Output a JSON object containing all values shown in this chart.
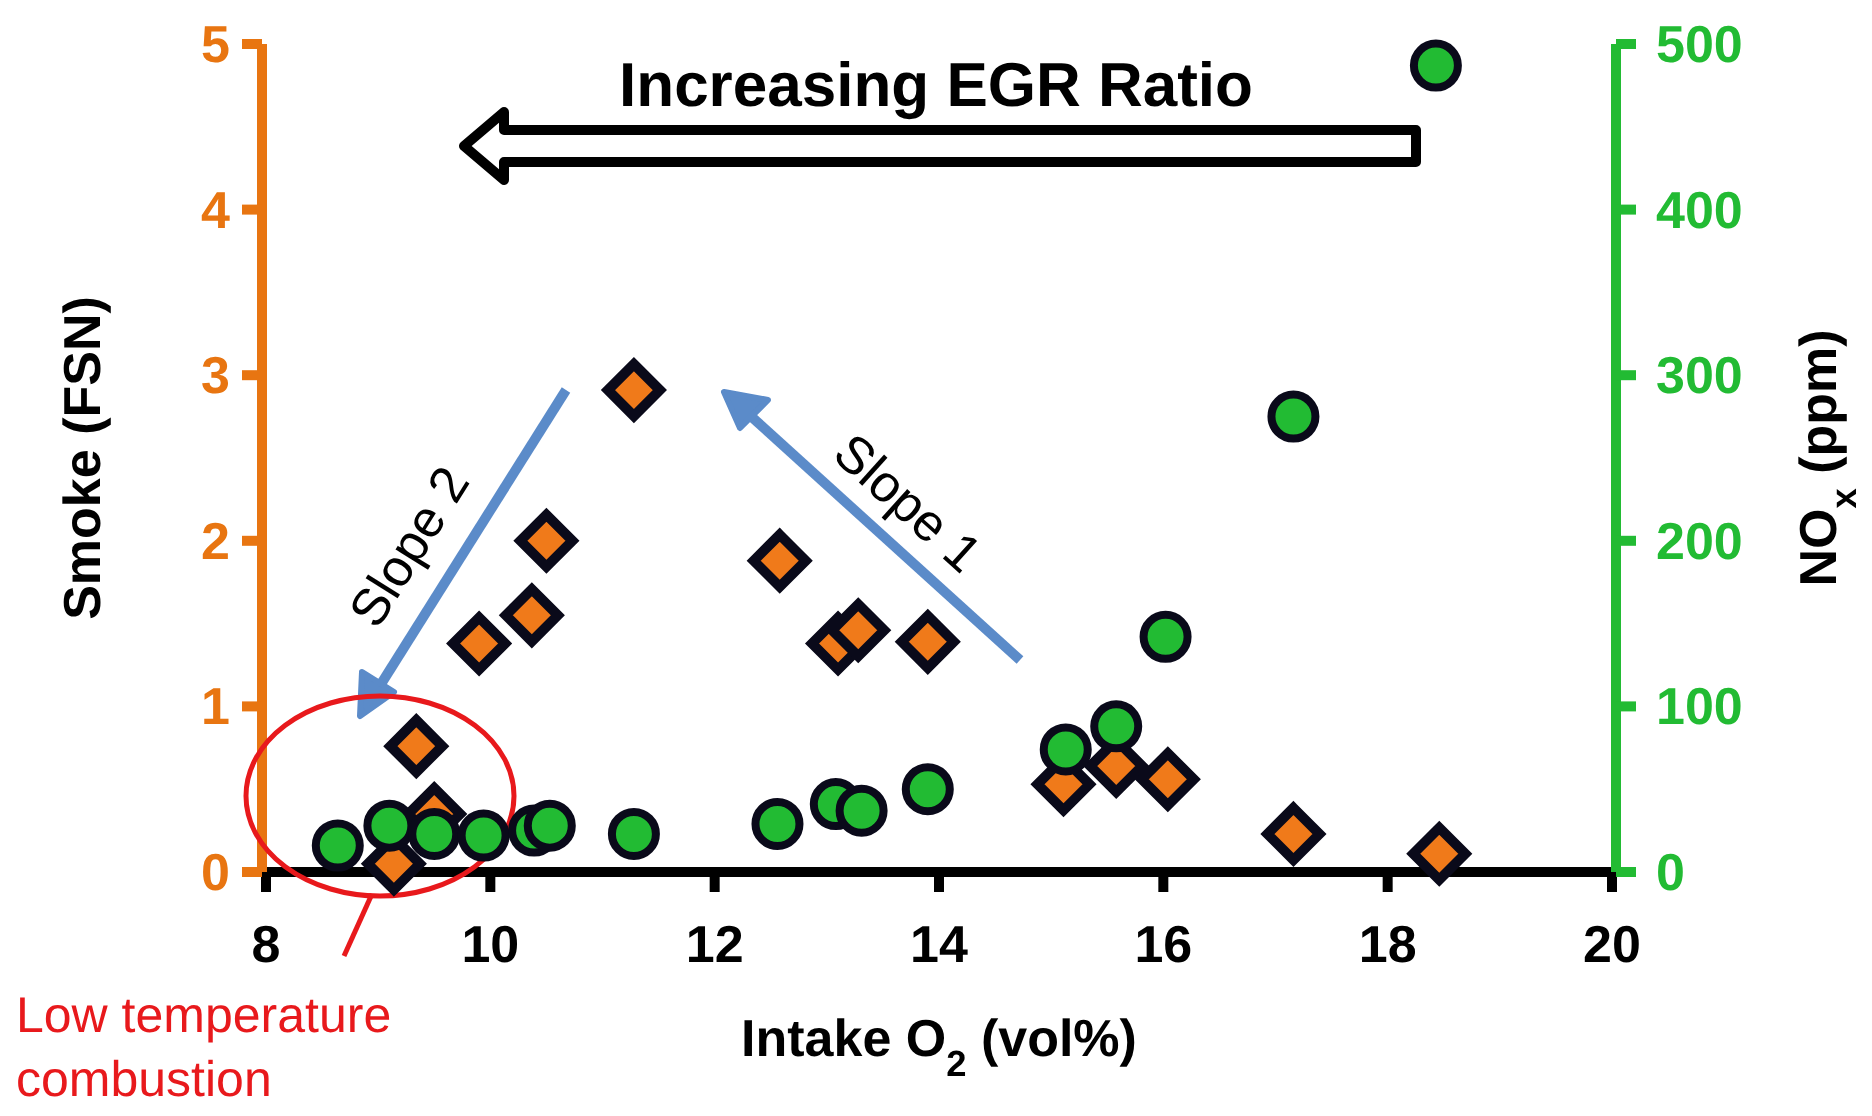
{
  "chart_data": {
    "type": "scatter",
    "xlabel": "Intake O$_{2}$ (vol%)",
    "ylabel": "Smoke (FSN)",
    "y2label": "NO$_{x}$ (ppm)",
    "xlim": [
      8,
      20
    ],
    "xticks": [
      8,
      10,
      12,
      14,
      16,
      18,
      20
    ],
    "ylim": [
      0,
      5
    ],
    "yticks": [
      0,
      1,
      2,
      3,
      4,
      5
    ],
    "y2lim": [
      0,
      500
    ],
    "y2ticks": [
      0,
      100,
      200,
      300,
      400,
      500
    ],
    "grid": false,
    "series": [
      {
        "color": "#f07a1a",
        "marker": "diamond",
        "axis": "y",
        "x": [
          9.14,
          9.34,
          9.5,
          9.9,
          10.37,
          10.5,
          11.28,
          12.58,
          13.1,
          13.28,
          13.9,
          15.11,
          15.58,
          16.04,
          17.16,
          18.46
        ],
        "values": [
          0.05,
          0.76,
          0.35,
          1.38,
          1.55,
          2.0,
          2.91,
          1.88,
          1.38,
          1.46,
          1.39,
          0.53,
          0.64,
          0.56,
          0.23,
          0.11
        ]
      },
      {
        "color": "#22bb33",
        "marker": "circle",
        "axis": "y2",
        "x": [
          8.64,
          9.1,
          9.5,
          9.94,
          10.39,
          10.53,
          11.28,
          12.56,
          13.08,
          13.31,
          13.9,
          15.13,
          15.58,
          16.02,
          17.16,
          18.43
        ],
        "values": [
          16,
          28,
          23,
          22,
          25,
          28,
          23,
          29,
          41,
          37,
          50,
          74,
          88,
          142,
          275,
          487
        ]
      }
    ],
    "annotations": [
      "Increasing EGR Ratio",
      "Slope 1",
      "Slope 2",
      "Low temperature combustion"
    ]
  }
}
